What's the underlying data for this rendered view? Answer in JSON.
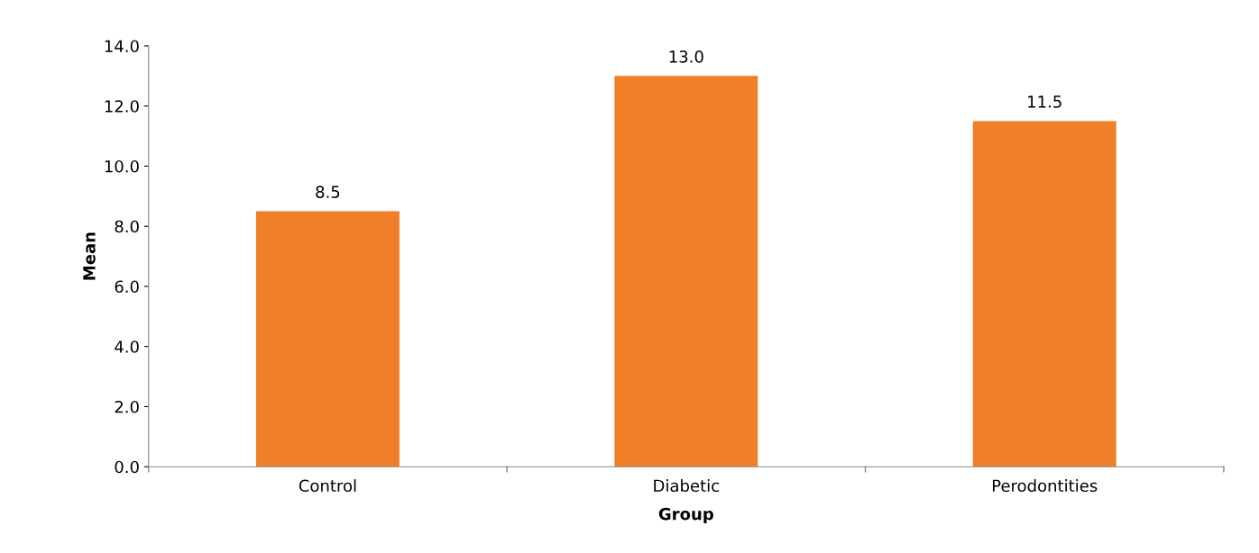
{
  "chart_data": {
    "type": "bar",
    "xlabel": "Group",
    "ylabel": "Mean",
    "categories": [
      "Control",
      "Diabetic",
      "Perodontities"
    ],
    "values": [
      8.5,
      13.0,
      11.5
    ],
    "value_labels": [
      "8.5",
      "13.0",
      "11.5"
    ],
    "color": "#f07f2a",
    "ylim": [
      0,
      14
    ],
    "yticks": [
      {
        "value": 0,
        "label": "0.0"
      },
      {
        "value": 2,
        "label": "2.0"
      },
      {
        "value": 4,
        "label": "4.0"
      },
      {
        "value": 6,
        "label": "6.0"
      },
      {
        "value": 8,
        "label": "8.0"
      },
      {
        "value": 10,
        "label": "10.0"
      },
      {
        "value": 12,
        "label": "12.0"
      },
      {
        "value": 14,
        "label": "14.0"
      }
    ],
    "grid": false,
    "legend": false
  }
}
